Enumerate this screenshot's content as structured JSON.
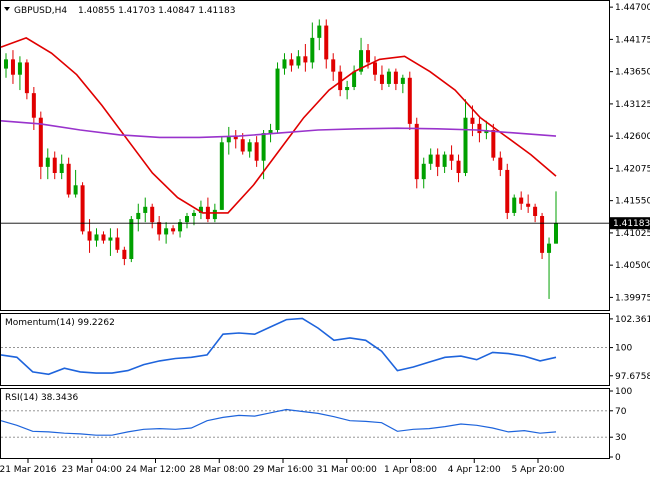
{
  "header": {
    "symbol": "GBPUSD,H4",
    "ohlc": "1.40855 1.41703 1.40847 1.41183",
    "toggle_icon": "triangle-down-icon"
  },
  "colors": {
    "bull": "#00a000",
    "bear": "#e00000",
    "ma_fast": "#e00000",
    "ma_slow": "#9933cc",
    "indicator": "#1e64dc",
    "price_line": "#000000",
    "frame": "#000000",
    "price_tag_bg": "#000000",
    "price_tag_text": "#ffffff"
  },
  "chart_data": {
    "type": "candlestick",
    "price_axis": {
      "min": 1.3977,
      "max": 1.448,
      "ticks": [
        "1.44700",
        "1.44175",
        "1.43650",
        "1.43125",
        "1.42600",
        "1.42075",
        "1.41550",
        "1.41025",
        "1.40500",
        "1.39975"
      ],
      "current_price": "1.41183",
      "current_value": 1.41183
    },
    "time_labels": [
      "21 Mar 2016",
      "23 Mar 04:00",
      "24 Mar 12:00",
      "28 Mar 08:00",
      "29 Mar 16:00",
      "31 Mar 00:00",
      "1 Apr 08:00",
      "4 Apr 12:00",
      "5 Apr 20:00"
    ],
    "candles": [
      [
        1.437,
        1.4395,
        1.4355,
        1.4385
      ],
      [
        1.4385,
        1.44,
        1.4345,
        1.436
      ],
      [
        1.436,
        1.439,
        1.4335,
        1.438
      ],
      [
        1.438,
        1.4385,
        1.432,
        1.433
      ],
      [
        1.433,
        1.434,
        1.427,
        1.429
      ],
      [
        1.429,
        1.43,
        1.419,
        1.421
      ],
      [
        1.421,
        1.424,
        1.419,
        1.4225
      ],
      [
        1.4225,
        1.4235,
        1.419,
        1.42
      ],
      [
        1.42,
        1.423,
        1.419,
        1.4215
      ],
      [
        1.4215,
        1.4225,
        1.416,
        1.4165
      ],
      [
        1.4165,
        1.4205,
        1.416,
        1.418
      ],
      [
        1.418,
        1.4185,
        1.41,
        1.4105
      ],
      [
        1.4105,
        1.4125,
        1.407,
        1.409
      ],
      [
        1.409,
        1.411,
        1.408,
        1.41
      ],
      [
        1.41,
        1.4105,
        1.4085,
        1.409
      ],
      [
        1.409,
        1.411,
        1.4065,
        1.4095
      ],
      [
        1.4095,
        1.411,
        1.407,
        1.4075
      ],
      [
        1.4075,
        1.408,
        1.405,
        1.406
      ],
      [
        1.406,
        1.413,
        1.4055,
        1.4125
      ],
      [
        1.4125,
        1.415,
        1.4105,
        1.4135
      ],
      [
        1.4135,
        1.416,
        1.412,
        1.4145
      ],
      [
        1.4145,
        1.415,
        1.411,
        1.412
      ],
      [
        1.412,
        1.413,
        1.409,
        1.41
      ],
      [
        1.41,
        1.412,
        1.4085,
        1.411
      ],
      [
        1.411,
        1.4115,
        1.41,
        1.4105
      ],
      [
        1.4105,
        1.4125,
        1.4095,
        1.412
      ],
      [
        1.412,
        1.4135,
        1.411,
        1.413
      ],
      [
        1.413,
        1.414,
        1.4115,
        1.4135
      ],
      [
        1.4135,
        1.4155,
        1.4125,
        1.4145
      ],
      [
        1.4145,
        1.416,
        1.412,
        1.4125
      ],
      [
        1.4125,
        1.415,
        1.412,
        1.414
      ],
      [
        1.414,
        1.426,
        1.414,
        1.425
      ],
      [
        1.425,
        1.4275,
        1.423,
        1.426
      ],
      [
        1.426,
        1.427,
        1.424,
        1.4255
      ],
      [
        1.4255,
        1.4265,
        1.423,
        1.4235
      ],
      [
        1.4235,
        1.4255,
        1.4225,
        1.425
      ],
      [
        1.425,
        1.426,
        1.421,
        1.422
      ],
      [
        1.422,
        1.427,
        1.419,
        1.4265
      ],
      [
        1.4265,
        1.428,
        1.425,
        1.427
      ],
      [
        1.427,
        1.438,
        1.4265,
        1.437
      ],
      [
        1.437,
        1.4395,
        1.436,
        1.4385
      ],
      [
        1.4385,
        1.4395,
        1.4365,
        1.4375
      ],
      [
        1.4375,
        1.44,
        1.437,
        1.439
      ],
      [
        1.439,
        1.441,
        1.4365,
        1.438
      ],
      [
        1.438,
        1.4445,
        1.437,
        1.442
      ],
      [
        1.442,
        1.445,
        1.44,
        1.444
      ],
      [
        1.444,
        1.445,
        1.437,
        1.4385
      ],
      [
        1.4385,
        1.4395,
        1.435,
        1.4365
      ],
      [
        1.4365,
        1.4375,
        1.4325,
        1.4335
      ],
      [
        1.4335,
        1.435,
        1.432,
        1.434
      ],
      [
        1.434,
        1.4375,
        1.4335,
        1.4365
      ],
      [
        1.4365,
        1.442,
        1.436,
        1.44
      ],
      [
        1.44,
        1.441,
        1.437,
        1.438
      ],
      [
        1.438,
        1.439,
        1.435,
        1.436
      ],
      [
        1.436,
        1.4375,
        1.4335,
        1.4345
      ],
      [
        1.4345,
        1.437,
        1.434,
        1.4365
      ],
      [
        1.4365,
        1.437,
        1.4335,
        1.4345
      ],
      [
        1.4345,
        1.436,
        1.433,
        1.4355
      ],
      [
        1.4355,
        1.4365,
        1.427,
        1.428
      ],
      [
        1.428,
        1.429,
        1.4175,
        1.419
      ],
      [
        1.419,
        1.4225,
        1.4175,
        1.4215
      ],
      [
        1.4215,
        1.424,
        1.4205,
        1.423
      ],
      [
        1.423,
        1.424,
        1.4195,
        1.421
      ],
      [
        1.421,
        1.4235,
        1.42,
        1.423
      ],
      [
        1.423,
        1.4245,
        1.4205,
        1.422
      ],
      [
        1.422,
        1.423,
        1.4185,
        1.42
      ],
      [
        1.42,
        1.432,
        1.4195,
        1.429
      ],
      [
        1.429,
        1.431,
        1.426,
        1.428
      ],
      [
        1.428,
        1.429,
        1.425,
        1.4265
      ],
      [
        1.4265,
        1.4285,
        1.4255,
        1.427
      ],
      [
        1.427,
        1.428,
        1.422,
        1.4225
      ],
      [
        1.4225,
        1.4235,
        1.4195,
        1.4205
      ],
      [
        1.4205,
        1.4215,
        1.4125,
        1.4135
      ],
      [
        1.4135,
        1.4165,
        1.413,
        1.416
      ],
      [
        1.416,
        1.417,
        1.414,
        1.415
      ],
      [
        1.415,
        1.4165,
        1.4135,
        1.4145
      ],
      [
        1.4145,
        1.415,
        1.412,
        1.413
      ],
      [
        1.413,
        1.4135,
        1.406,
        1.407
      ],
      [
        1.407,
        1.4095,
        1.3995,
        1.4085
      ],
      [
        1.4085,
        1.417,
        1.4085,
        1.4118
      ]
    ],
    "ma_fast": [
      1.4405,
      1.442,
      1.4395,
      1.436,
      1.431,
      1.4255,
      1.42,
      1.416,
      1.4135,
      1.4135,
      1.418,
      1.4235,
      1.429,
      1.4335,
      1.4365,
      1.4385,
      1.439,
      1.4365,
      1.4335,
      1.429,
      1.426,
      1.423,
      1.4195
    ],
    "ma_slow": [
      1.4285,
      1.428,
      1.427,
      1.4262,
      1.4258,
      1.4258,
      1.426,
      1.4265,
      1.427,
      1.4272,
      1.4273,
      1.4272,
      1.427,
      1.4265,
      1.426
    ],
    "momentum": {
      "label": "Momentum(14) 99.2262",
      "ticks": [
        "102.3618",
        "100",
        "97.6758"
      ],
      "min": 97.0,
      "max": 102.6,
      "reference": 100,
      "values": [
        99.4,
        99.2,
        98.0,
        97.8,
        98.3,
        98.0,
        97.9,
        97.9,
        98.1,
        98.6,
        98.9,
        99.1,
        99.2,
        99.4,
        101.1,
        101.2,
        101.1,
        101.7,
        102.3,
        102.4,
        101.6,
        100.6,
        100.8,
        100.6,
        99.7,
        98.1,
        98.4,
        98.8,
        99.2,
        99.3,
        99.0,
        99.6,
        99.5,
        99.3,
        98.9,
        99.2
      ]
    },
    "rsi": {
      "label": "RSI(14) 38.3436",
      "ticks": [
        "100",
        "70",
        "30",
        "0"
      ],
      "min": 0,
      "max": 100,
      "levels": [
        70,
        30
      ],
      "values": [
        55,
        48,
        39,
        38,
        36,
        35,
        33,
        33,
        38,
        42,
        43,
        42,
        44,
        55,
        60,
        63,
        62,
        67,
        72,
        69,
        66,
        61,
        55,
        54,
        52,
        39,
        42,
        43,
        46,
        50,
        48,
        44,
        38,
        40,
        36,
        38
      ]
    }
  }
}
